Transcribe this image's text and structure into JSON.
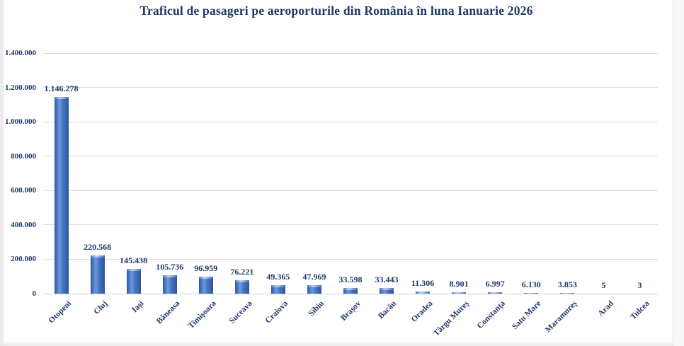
{
  "page": {
    "background": "#ffffff"
  },
  "chart_data": {
    "type": "bar",
    "title": "Traficul de pasageri pe aeroporturile din România în luna Ianuarie 2026",
    "categories": [
      "Otopeni",
      "Cluj",
      "Iași",
      "Băneasa",
      "Timișoara",
      "Suceava",
      "Craiova",
      "Sibiu",
      "Brașov",
      "Bacău",
      "Oradea",
      "Târgu Mureș",
      "Constanța",
      "Satu Mare",
      "Maramureș",
      "Arad",
      "Tulcea"
    ],
    "values": [
      1146278,
      220568,
      145438,
      105736,
      96959,
      76221,
      49365,
      47969,
      33598,
      33443,
      11306,
      8901,
      6997,
      6130,
      3853,
      5,
      3
    ],
    "value_labels": [
      "1.146.278",
      "220.568",
      "145.438",
      "105.736",
      "96.959",
      "76.221",
      "49.365",
      "47.969",
      "33.598",
      "33.443",
      "11.306",
      "8.901",
      "6.997",
      "6.130",
      "3.853",
      "5",
      "3"
    ],
    "y_ticks": [
      "1.400.000",
      "1.200.000",
      "1.000.000",
      "800.000",
      "600.000",
      "400.000",
      "200.000",
      "0"
    ],
    "ylim": [
      0,
      1400000
    ],
    "grid": true,
    "legend": "none",
    "xlabel": "",
    "ylabel": "",
    "colors": {
      "bar": "#4472C4",
      "bar_edge": "#2E5596",
      "bar_mid": "#6C99DD",
      "bar_highlight": "#9DBDEB",
      "text": "#1F3864",
      "gridline": "#DCDCDC",
      "baseline": "#C9CFDA"
    }
  }
}
